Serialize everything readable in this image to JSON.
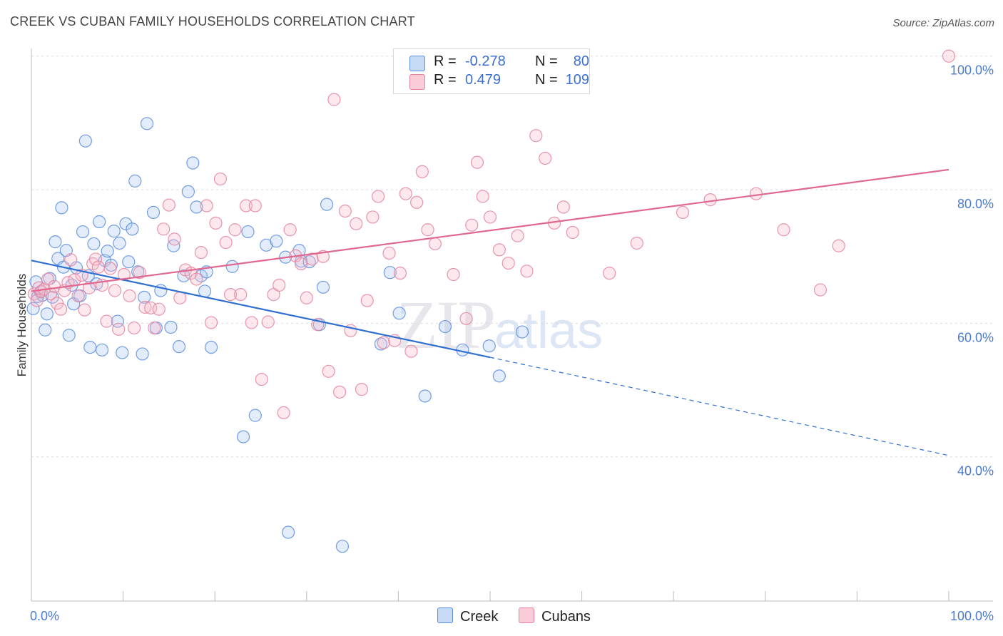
{
  "header": {
    "title": "CREEK VS CUBAN FAMILY HOUSEHOLDS CORRELATION CHART",
    "source": "Source: ZipAtlas.com"
  },
  "watermark": {
    "zip": "ZIP",
    "atlas": "atlas"
  },
  "legend": {
    "rows": [
      {
        "r_label": "R =",
        "r_value": "-0.278",
        "n_label": "N =",
        "n_value": "80",
        "color": "#adc8f0",
        "border": "#5b8de0"
      },
      {
        "r_label": "R =",
        "r_value": "0.479",
        "n_label": "N =",
        "n_value": "109",
        "color": "#f7bccb",
        "border": "#e4849f"
      }
    ]
  },
  "bottom_legend": [
    "Creek",
    "Cubans"
  ],
  "colors": {
    "creek": "#5b8de0",
    "creek_fill": "#adc8f0",
    "cubans": "#e4849f",
    "cubans_fill": "#f7bccb",
    "creek_line": "#2f6fd0",
    "cubans_line": "#e0678f"
  },
  "chart_data": {
    "type": "scatter",
    "title": "CREEK VS CUBAN FAMILY HOUSEHOLDS CORRELATION CHART",
    "xlabel": "",
    "ylabel": "Family Households",
    "xlim": [
      0,
      100
    ],
    "ylim": [
      18.4,
      102
    ],
    "x_tick_labels": [
      "0.0%",
      "100.0%"
    ],
    "y_ticks": [
      40,
      60,
      80,
      100
    ],
    "y_tick_labels": [
      "40.0%",
      "60.0%",
      "80.0%",
      "100.0%"
    ],
    "grid": true,
    "legend_position": "top-center",
    "series": [
      {
        "name": "Creek",
        "points": [
          [
            0.2,
            62.2
          ],
          [
            0.5,
            66.2
          ],
          [
            0.7,
            64.0
          ],
          [
            1.0,
            64.7
          ],
          [
            1.2,
            64.2
          ],
          [
            1.5,
            59.0
          ],
          [
            1.7,
            61.4
          ],
          [
            2.0,
            66.7
          ],
          [
            2.3,
            63.9
          ],
          [
            2.6,
            72.2
          ],
          [
            2.9,
            69.7
          ],
          [
            3.3,
            77.3
          ],
          [
            3.5,
            68.4
          ],
          [
            3.8,
            70.9
          ],
          [
            4.1,
            58.2
          ],
          [
            4.4,
            65.7
          ],
          [
            4.6,
            62.9
          ],
          [
            4.9,
            68.3
          ],
          [
            5.3,
            64.1
          ],
          [
            5.6,
            73.7
          ],
          [
            5.9,
            87.3
          ],
          [
            6.2,
            67.1
          ],
          [
            6.4,
            56.4
          ],
          [
            6.8,
            71.9
          ],
          [
            7.1,
            65.9
          ],
          [
            7.4,
            75.2
          ],
          [
            7.7,
            56.0
          ],
          [
            8.0,
            69.4
          ],
          [
            8.3,
            70.8
          ],
          [
            8.7,
            68.7
          ],
          [
            9.0,
            73.8
          ],
          [
            9.4,
            60.3
          ],
          [
            9.6,
            72.0
          ],
          [
            9.9,
            55.6
          ],
          [
            10.3,
            74.9
          ],
          [
            10.6,
            69.2
          ],
          [
            11.0,
            74.1
          ],
          [
            11.3,
            81.3
          ],
          [
            11.6,
            67.7
          ],
          [
            12.1,
            55.4
          ],
          [
            12.3,
            63.9
          ],
          [
            12.6,
            89.9
          ],
          [
            13.3,
            76.6
          ],
          [
            13.6,
            59.3
          ],
          [
            14.1,
            64.9
          ],
          [
            15.2,
            59.4
          ],
          [
            15.5,
            71.6
          ],
          [
            16.1,
            56.5
          ],
          [
            16.6,
            67.1
          ],
          [
            17.1,
            79.7
          ],
          [
            17.6,
            84.0
          ],
          [
            18.0,
            77.4
          ],
          [
            18.5,
            67.1
          ],
          [
            18.9,
            64.8
          ],
          [
            19.1,
            67.7
          ],
          [
            19.6,
            56.4
          ],
          [
            21.9,
            68.5
          ],
          [
            23.1,
            43.0
          ],
          [
            23.6,
            73.7
          ],
          [
            24.4,
            46.2
          ],
          [
            25.6,
            71.7
          ],
          [
            26.7,
            72.3
          ],
          [
            27.7,
            69.9
          ],
          [
            28.0,
            28.7
          ],
          [
            29.2,
            70.9
          ],
          [
            29.4,
            69.3
          ],
          [
            30.3,
            69.2
          ],
          [
            31.4,
            59.8
          ],
          [
            31.8,
            65.4
          ],
          [
            32.2,
            77.8
          ],
          [
            33.9,
            26.6
          ],
          [
            38.1,
            56.9
          ],
          [
            39.1,
            67.6
          ],
          [
            40.1,
            61.5
          ],
          [
            42.9,
            49.1
          ],
          [
            45.1,
            59.5
          ],
          [
            49.9,
            56.6
          ],
          [
            53.5,
            58.7
          ],
          [
            51.0,
            52.1
          ],
          [
            47.0,
            56.0
          ]
        ],
        "trend": {
          "x": [
            0,
            50
          ],
          "y": [
            69.4,
            54.9
          ],
          "dashed_extension": {
            "x": [
              50,
              100
            ],
            "y": [
              54.9,
              40.2
            ]
          }
        }
      },
      {
        "name": "Cubans",
        "points": [
          [
            0.3,
            64.4
          ],
          [
            0.6,
            63.4
          ],
          [
            0.8,
            65.3
          ],
          [
            1.1,
            64.8
          ],
          [
            1.4,
            65.1
          ],
          [
            1.8,
            66.6
          ],
          [
            2.1,
            64.4
          ],
          [
            2.5,
            65.5
          ],
          [
            2.8,
            63.0
          ],
          [
            3.2,
            62.1
          ],
          [
            3.6,
            64.9
          ],
          [
            4.0,
            66.1
          ],
          [
            4.3,
            69.5
          ],
          [
            4.7,
            66.5
          ],
          [
            5.1,
            64.1
          ],
          [
            5.5,
            67.2
          ],
          [
            5.8,
            62.0
          ],
          [
            6.3,
            65.3
          ],
          [
            6.7,
            68.9
          ],
          [
            7.0,
            69.6
          ],
          [
            7.3,
            68.4
          ],
          [
            7.7,
            65.7
          ],
          [
            8.2,
            60.3
          ],
          [
            8.6,
            68.2
          ],
          [
            9.1,
            64.9
          ],
          [
            9.5,
            59.1
          ],
          [
            10.1,
            67.3
          ],
          [
            10.7,
            64.1
          ],
          [
            11.2,
            59.3
          ],
          [
            11.8,
            67.6
          ],
          [
            12.4,
            62.4
          ],
          [
            13.0,
            62.3
          ],
          [
            13.4,
            59.3
          ],
          [
            13.9,
            62.1
          ],
          [
            14.4,
            74.1
          ],
          [
            15.0,
            77.7
          ],
          [
            15.6,
            72.6
          ],
          [
            16.2,
            63.8
          ],
          [
            16.8,
            68.0
          ],
          [
            17.4,
            67.5
          ],
          [
            18.0,
            66.6
          ],
          [
            18.5,
            70.6
          ],
          [
            19.1,
            77.6
          ],
          [
            19.6,
            60.1
          ],
          [
            20.1,
            75.0
          ],
          [
            20.6,
            81.6
          ],
          [
            21.2,
            72.1
          ],
          [
            21.7,
            64.3
          ],
          [
            22.2,
            74.0
          ],
          [
            22.8,
            64.3
          ],
          [
            23.4,
            77.6
          ],
          [
            24.0,
            60.1
          ],
          [
            24.4,
            77.6
          ],
          [
            25.1,
            51.6
          ],
          [
            25.8,
            60.2
          ],
          [
            26.4,
            64.3
          ],
          [
            27.0,
            65.7
          ],
          [
            27.5,
            46.6
          ],
          [
            28.2,
            74.0
          ],
          [
            28.8,
            70.1
          ],
          [
            29.4,
            68.9
          ],
          [
            30.0,
            63.8
          ],
          [
            30.6,
            69.6
          ],
          [
            31.2,
            59.8
          ],
          [
            31.8,
            70.0
          ],
          [
            32.4,
            52.8
          ],
          [
            33.0,
            93.5
          ],
          [
            33.6,
            49.7
          ],
          [
            34.2,
            76.8
          ],
          [
            34.8,
            58.9
          ],
          [
            35.4,
            74.9
          ],
          [
            36.0,
            50.1
          ],
          [
            36.6,
            63.4
          ],
          [
            37.2,
            75.9
          ],
          [
            37.8,
            79.0
          ],
          [
            38.4,
            57.1
          ],
          [
            39.0,
            70.5
          ],
          [
            39.6,
            57.4
          ],
          [
            40.2,
            67.5
          ],
          [
            40.8,
            79.4
          ],
          [
            41.4,
            55.8
          ],
          [
            42.0,
            78.1
          ],
          [
            42.6,
            82.7
          ],
          [
            43.2,
            74.0
          ],
          [
            44.0,
            71.9
          ],
          [
            46.0,
            67.3
          ],
          [
            47.4,
            60.7
          ],
          [
            48.0,
            74.7
          ],
          [
            48.6,
            84.1
          ],
          [
            49.2,
            79.0
          ],
          [
            50.0,
            75.9
          ],
          [
            51.0,
            71.0
          ],
          [
            52.0,
            69.0
          ],
          [
            53.0,
            73.1
          ],
          [
            54.0,
            67.8
          ],
          [
            55.0,
            88.1
          ],
          [
            56.0,
            84.7
          ],
          [
            57.0,
            75.0
          ],
          [
            58.0,
            77.4
          ],
          [
            59.0,
            73.6
          ],
          [
            63.0,
            67.5
          ],
          [
            66.0,
            72.0
          ],
          [
            71.0,
            76.6
          ],
          [
            74.0,
            78.5
          ],
          [
            79.0,
            79.4
          ],
          [
            82.0,
            74.0
          ],
          [
            86.0,
            65.0
          ],
          [
            88.0,
            71.6
          ],
          [
            100,
            100.0
          ]
        ],
        "trend": {
          "x": [
            0,
            100
          ],
          "y": [
            64.8,
            83.0
          ]
        }
      }
    ]
  }
}
